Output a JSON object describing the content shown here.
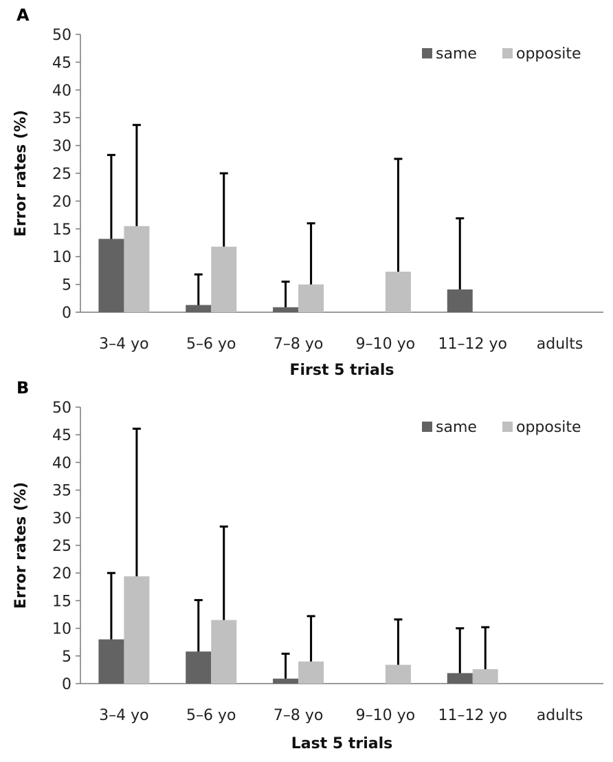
{
  "chart_data": [
    {
      "type": "bar",
      "panel_label": "A",
      "title": "",
      "xlabel": "First 5 trials",
      "ylabel": "Error rates (%)",
      "ylim": [
        0,
        50
      ],
      "yticks": [
        0,
        5,
        10,
        15,
        20,
        25,
        30,
        35,
        40,
        45,
        50
      ],
      "categories": [
        "3–4 yo",
        "5–6 yo",
        "7–8 yo",
        "9–10 yo",
        "11–12 yo",
        "adults"
      ],
      "legend_position": "top-right",
      "series": [
        {
          "name": "same",
          "color": "#636363",
          "values": [
            13.2,
            1.3,
            0.9,
            0,
            4.1,
            0
          ],
          "error_upper": [
            28.3,
            6.8,
            5.5,
            null,
            16.9,
            null
          ]
        },
        {
          "name": "opposite",
          "color": "#c0c0c0",
          "values": [
            15.5,
            11.8,
            5.0,
            7.3,
            0,
            0
          ],
          "error_upper": [
            33.7,
            25.0,
            16.0,
            27.6,
            null,
            null
          ]
        }
      ]
    },
    {
      "type": "bar",
      "panel_label": "B",
      "title": "",
      "xlabel": "Last 5 trials",
      "ylabel": "Error rates (%)",
      "ylim": [
        0,
        50
      ],
      "yticks": [
        0,
        5,
        10,
        15,
        20,
        25,
        30,
        35,
        40,
        45,
        50
      ],
      "categories": [
        "3–4 yo",
        "5–6 yo",
        "7–8 yo",
        "9–10 yo",
        "11–12 yo",
        "adults"
      ],
      "legend_position": "top-right",
      "series": [
        {
          "name": "same",
          "color": "#636363",
          "values": [
            8.0,
            5.8,
            0.9,
            0,
            1.9,
            0
          ],
          "error_upper": [
            20.0,
            15.1,
            5.4,
            null,
            10.0,
            null
          ]
        },
        {
          "name": "opposite",
          "color": "#c0c0c0",
          "values": [
            19.4,
            11.5,
            4.0,
            3.4,
            2.6,
            0
          ],
          "error_upper": [
            46.1,
            28.4,
            12.2,
            11.6,
            10.2,
            null
          ]
        }
      ]
    }
  ]
}
